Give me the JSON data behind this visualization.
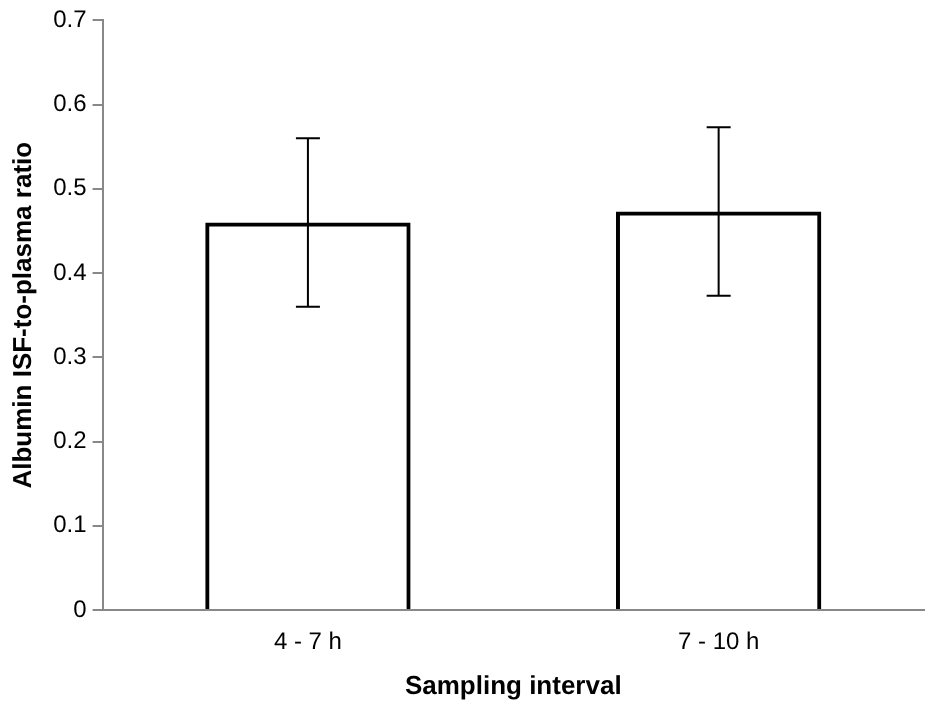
{
  "chart_data": {
    "type": "bar",
    "xlabel": "Sampling interval",
    "ylabel": "Albumin ISF-to-plasma ratio",
    "categories": [
      "4 - 7 h",
      "7 - 10 h"
    ],
    "values": [
      0.46,
      0.473
    ],
    "errors": [
      0.1,
      0.1
    ],
    "color": "#000000",
    "ylim": [
      0,
      0.7
    ],
    "yticks": [
      0,
      0.1,
      0.2,
      0.3,
      0.4,
      0.5,
      0.6,
      0.7
    ],
    "grid": false,
    "legend": false
  }
}
